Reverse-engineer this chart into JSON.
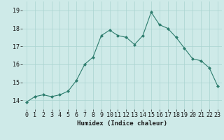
{
  "x": [
    0,
    1,
    2,
    3,
    4,
    5,
    6,
    7,
    8,
    9,
    10,
    11,
    12,
    13,
    14,
    15,
    16,
    17,
    18,
    19,
    20,
    21,
    22,
    23
  ],
  "y": [
    13.9,
    14.2,
    14.3,
    14.2,
    14.3,
    14.5,
    15.1,
    16.0,
    16.4,
    17.6,
    17.9,
    17.6,
    17.5,
    17.1,
    17.6,
    18.9,
    18.2,
    18.0,
    17.5,
    16.9,
    16.3,
    16.2,
    15.8,
    14.8
  ],
  "line_color": "#2e7d6e",
  "marker": "D",
  "marker_size": 2.0,
  "bg_color": "#ceeae8",
  "grid_color": "#aad4d0",
  "xlabel": "Humidex (Indice chaleur)",
  "xlim": [
    -0.5,
    23.5
  ],
  "ylim": [
    13.5,
    19.5
  ],
  "yticks": [
    14,
    15,
    16,
    17,
    18,
    19
  ],
  "xticks": [
    0,
    1,
    2,
    3,
    4,
    5,
    6,
    7,
    8,
    9,
    10,
    11,
    12,
    13,
    14,
    15,
    16,
    17,
    18,
    19,
    20,
    21,
    22,
    23
  ],
  "xlabel_fontsize": 6.5,
  "tick_fontsize": 6.0,
  "linewidth": 0.8
}
